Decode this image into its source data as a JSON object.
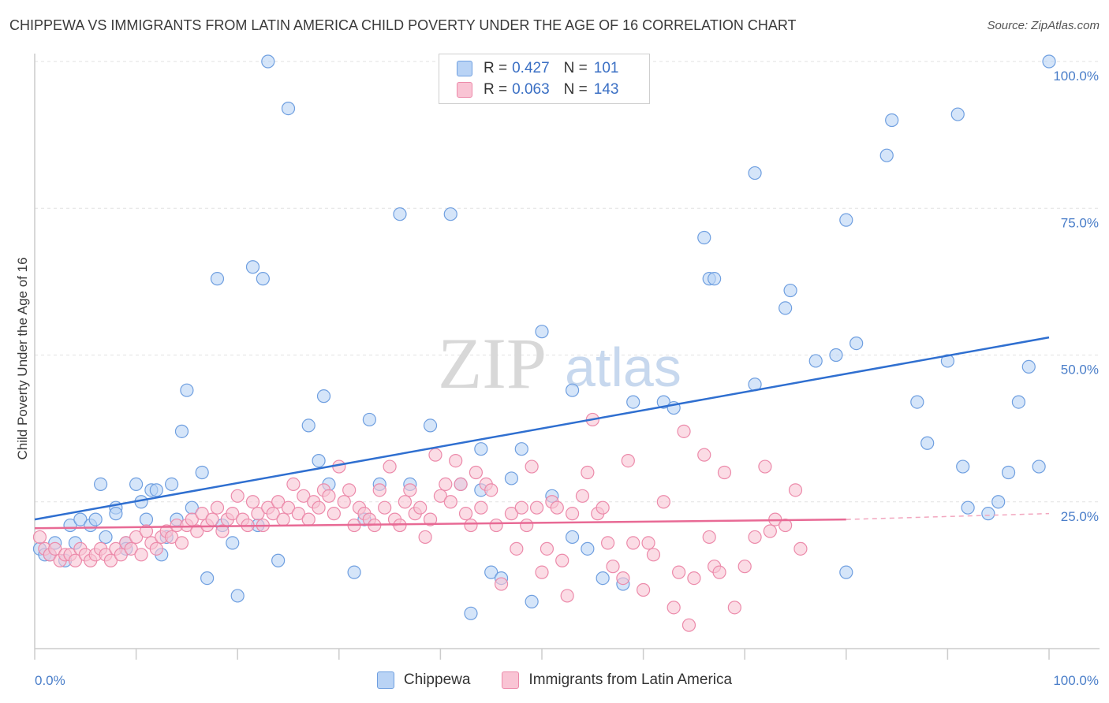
{
  "title": "CHIPPEWA VS IMMIGRANTS FROM LATIN AMERICA CHILD POVERTY UNDER THE AGE OF 16 CORRELATION CHART",
  "source": "Source: ZipAtlas.com",
  "watermark": {
    "zip": "ZIP",
    "atlas": "atlas"
  },
  "legend": [
    {
      "r_label": "R =",
      "r": "0.427",
      "n_label": "N =",
      "n": "101",
      "fill": "#b9d3f5",
      "stroke": "#6f9fe0"
    },
    {
      "r_label": "R =",
      "r": "0.063",
      "n_label": "N =",
      "n": "143",
      "fill": "#f9c4d4",
      "stroke": "#ec8aaa"
    }
  ],
  "chart_data": {
    "type": "scatter",
    "title": "",
    "xlabel": "",
    "ylabel": "Child Poverty Under the Age of 16",
    "xlim": [
      0,
      100
    ],
    "ylim": [
      0,
      100
    ],
    "x_tick_labels": [
      {
        "value": 0,
        "label": "0.0%"
      },
      {
        "value": 100,
        "label": "100.0%"
      }
    ],
    "y_tick_labels": [
      {
        "value": 25,
        "label": "25.0%"
      },
      {
        "value": 50,
        "label": "50.0%"
      },
      {
        "value": 75,
        "label": "75.0%"
      },
      {
        "value": 100,
        "label": "100.0%"
      }
    ],
    "grid": "horizontal dashed",
    "series": [
      {
        "name": "Chippewa",
        "color": "#6f9fe0",
        "fill": "#b9d3f5",
        "trend": {
          "x0": 0,
          "y0": 22.0,
          "x1": 100,
          "y1": 53.0
        },
        "points": [
          [
            0.5,
            17
          ],
          [
            1,
            16
          ],
          [
            1.5,
            16
          ],
          [
            2,
            18
          ],
          [
            3,
            15
          ],
          [
            3.5,
            21
          ],
          [
            4,
            18
          ],
          [
            4.5,
            22
          ],
          [
            5.5,
            21
          ],
          [
            6,
            22
          ],
          [
            6.5,
            28
          ],
          [
            7,
            19
          ],
          [
            8,
            24
          ],
          [
            8,
            23
          ],
          [
            9,
            18
          ],
          [
            9,
            17
          ],
          [
            10,
            28
          ],
          [
            10.5,
            25
          ],
          [
            11,
            22
          ],
          [
            11.5,
            27
          ],
          [
            12,
            27
          ],
          [
            12.5,
            16
          ],
          [
            13,
            19
          ],
          [
            13.5,
            28
          ],
          [
            14,
            22
          ],
          [
            14.5,
            37
          ],
          [
            15,
            44
          ],
          [
            15.5,
            24
          ],
          [
            16.5,
            30
          ],
          [
            17,
            12
          ],
          [
            18,
            63
          ],
          [
            18.5,
            21
          ],
          [
            19.5,
            18
          ],
          [
            20,
            9
          ],
          [
            21.5,
            65
          ],
          [
            22,
            21
          ],
          [
            22.5,
            63
          ],
          [
            23,
            100
          ],
          [
            24,
            15
          ],
          [
            25,
            92
          ],
          [
            27,
            38
          ],
          [
            28,
            32
          ],
          [
            28.5,
            43
          ],
          [
            29,
            28
          ],
          [
            31.5,
            13
          ],
          [
            32.5,
            22
          ],
          [
            33,
            39
          ],
          [
            34,
            28
          ],
          [
            36,
            74
          ],
          [
            37,
            28
          ],
          [
            39,
            38
          ],
          [
            41,
            74
          ],
          [
            42,
            28
          ],
          [
            43,
            6
          ],
          [
            44,
            27
          ],
          [
            44,
            34
          ],
          [
            45,
            13
          ],
          [
            46,
            12
          ],
          [
            47,
            29
          ],
          [
            48,
            34
          ],
          [
            49,
            8
          ],
          [
            50,
            54
          ],
          [
            51,
            26
          ],
          [
            53,
            44
          ],
          [
            53,
            19
          ],
          [
            54.5,
            17
          ],
          [
            56,
            12
          ],
          [
            58,
            11
          ],
          [
            59,
            42
          ],
          [
            62,
            42
          ],
          [
            63,
            41
          ],
          [
            66,
            70
          ],
          [
            66.5,
            63
          ],
          [
            67,
            63
          ],
          [
            71,
            45
          ],
          [
            71,
            81
          ],
          [
            74,
            58
          ],
          [
            74.5,
            61
          ],
          [
            77,
            49
          ],
          [
            79,
            50
          ],
          [
            80,
            73
          ],
          [
            80,
            13
          ],
          [
            81,
            52
          ],
          [
            84,
            84
          ],
          [
            84.5,
            90
          ],
          [
            87,
            42
          ],
          [
            88,
            35
          ],
          [
            90,
            49
          ],
          [
            91,
            91
          ],
          [
            91.5,
            31
          ],
          [
            92,
            24
          ],
          [
            94,
            23
          ],
          [
            95,
            25
          ],
          [
            96,
            30
          ],
          [
            97,
            42
          ],
          [
            98,
            48
          ],
          [
            99,
            31
          ],
          [
            100,
            100
          ]
        ]
      },
      {
        "name": "Immigrants from Latin America",
        "color": "#ec8aaa",
        "fill": "#f9c4d4",
        "trend": {
          "x0": 0,
          "y0": 20.5,
          "x1": 80,
          "y1": 22.0,
          "dashed_to": 100,
          "dashed_y": 23.0
        },
        "points": [
          [
            0.5,
            19
          ],
          [
            1,
            17
          ],
          [
            1.5,
            16
          ],
          [
            2,
            17
          ],
          [
            2.5,
            15
          ],
          [
            3,
            16
          ],
          [
            3.5,
            16
          ],
          [
            4,
            15
          ],
          [
            4.5,
            17
          ],
          [
            5,
            16
          ],
          [
            5.5,
            15
          ],
          [
            6,
            16
          ],
          [
            6.5,
            17
          ],
          [
            7,
            16
          ],
          [
            7.5,
            15
          ],
          [
            8,
            17
          ],
          [
            8.5,
            16
          ],
          [
            9,
            18
          ],
          [
            9.5,
            17
          ],
          [
            10,
            19
          ],
          [
            10.5,
            16
          ],
          [
            11,
            20
          ],
          [
            11.5,
            18
          ],
          [
            12,
            17
          ],
          [
            12.5,
            19
          ],
          [
            13,
            20
          ],
          [
            13.5,
            19
          ],
          [
            14,
            21
          ],
          [
            14.5,
            18
          ],
          [
            15,
            21
          ],
          [
            15.5,
            22
          ],
          [
            16,
            20
          ],
          [
            16.5,
            23
          ],
          [
            17,
            21
          ],
          [
            17.5,
            22
          ],
          [
            18,
            24
          ],
          [
            18.5,
            20
          ],
          [
            19,
            22
          ],
          [
            19.5,
            23
          ],
          [
            20,
            26
          ],
          [
            20.5,
            22
          ],
          [
            21,
            21
          ],
          [
            21.5,
            25
          ],
          [
            22,
            23
          ],
          [
            22.5,
            21
          ],
          [
            23,
            24
          ],
          [
            23.5,
            23
          ],
          [
            24,
            25
          ],
          [
            24.5,
            22
          ],
          [
            25,
            24
          ],
          [
            25.5,
            28
          ],
          [
            26,
            23
          ],
          [
            26.5,
            26
          ],
          [
            27,
            22
          ],
          [
            27.5,
            25
          ],
          [
            28,
            24
          ],
          [
            28.5,
            27
          ],
          [
            29,
            26
          ],
          [
            29.5,
            23
          ],
          [
            30,
            31
          ],
          [
            30.5,
            25
          ],
          [
            31,
            27
          ],
          [
            31.5,
            21
          ],
          [
            32,
            24
          ],
          [
            32.5,
            23
          ],
          [
            33,
            22
          ],
          [
            33.5,
            21
          ],
          [
            34,
            27
          ],
          [
            34.5,
            24
          ],
          [
            35,
            31
          ],
          [
            35.5,
            22
          ],
          [
            36,
            21
          ],
          [
            36.5,
            25
          ],
          [
            37,
            27
          ],
          [
            37.5,
            23
          ],
          [
            38,
            24
          ],
          [
            38.5,
            19
          ],
          [
            39,
            22
          ],
          [
            39.5,
            33
          ],
          [
            40,
            26
          ],
          [
            40.5,
            28
          ],
          [
            41,
            25
          ],
          [
            41.5,
            32
          ],
          [
            42,
            28
          ],
          [
            42.5,
            23
          ],
          [
            43,
            21
          ],
          [
            43.5,
            30
          ],
          [
            44,
            24
          ],
          [
            44.5,
            28
          ],
          [
            45,
            27
          ],
          [
            45.5,
            21
          ],
          [
            46,
            11
          ],
          [
            47,
            23
          ],
          [
            47.5,
            17
          ],
          [
            48,
            24
          ],
          [
            48.5,
            21
          ],
          [
            49,
            31
          ],
          [
            49.5,
            24
          ],
          [
            50,
            13
          ],
          [
            50.5,
            17
          ],
          [
            51,
            25
          ],
          [
            51.5,
            24
          ],
          [
            52,
            15
          ],
          [
            52.5,
            9
          ],
          [
            53,
            23
          ],
          [
            54,
            26
          ],
          [
            54.5,
            30
          ],
          [
            55,
            39
          ],
          [
            55.5,
            23
          ],
          [
            56,
            24
          ],
          [
            56.5,
            18
          ],
          [
            57,
            14
          ],
          [
            58,
            12
          ],
          [
            58.5,
            32
          ],
          [
            59,
            18
          ],
          [
            60,
            10
          ],
          [
            60.5,
            18
          ],
          [
            61,
            16
          ],
          [
            62,
            25
          ],
          [
            63,
            7
          ],
          [
            63.5,
            13
          ],
          [
            64,
            37
          ],
          [
            64.5,
            4
          ],
          [
            65,
            12
          ],
          [
            66,
            33
          ],
          [
            66.5,
            19
          ],
          [
            67,
            14
          ],
          [
            67.5,
            13
          ],
          [
            68,
            30
          ],
          [
            69,
            7
          ],
          [
            70,
            14
          ],
          [
            71,
            19
          ],
          [
            72,
            31
          ],
          [
            72.5,
            20
          ],
          [
            73,
            22
          ],
          [
            74,
            21
          ],
          [
            75,
            27
          ],
          [
            75.5,
            17
          ]
        ]
      }
    ]
  },
  "bottom_legend": [
    {
      "label": "Chippewa",
      "fill": "#b9d3f5",
      "stroke": "#6f9fe0"
    },
    {
      "label": "Immigrants from Latin America",
      "fill": "#f9c4d4",
      "stroke": "#ec8aaa"
    }
  ]
}
